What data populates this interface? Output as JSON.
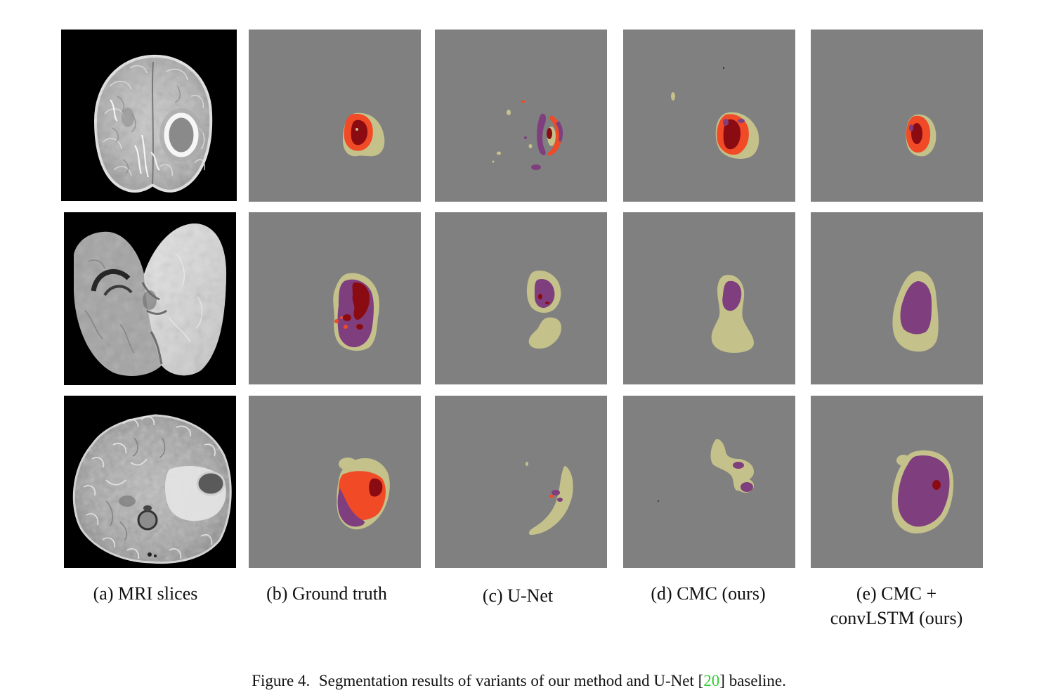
{
  "figure": {
    "columns": [
      {
        "label": "(a) MRI slices"
      },
      {
        "label": "(b) Ground truth"
      },
      {
        "label": "(c) U-Net"
      },
      {
        "label": "(d) CMC (ours)"
      },
      {
        "label_line1": "(e) CMC +",
        "label_line2": "convLSTM (ours)"
      }
    ],
    "caption": {
      "figure_number": "Figure 4.",
      "text_before_ref": "Segmentation results of variants of our method and U-Net [",
      "ref": "20",
      "text_after_ref": "] baseline."
    }
  },
  "colors": {
    "mri_background": "#000000",
    "segmentation_background": "#808080",
    "segment_khaki": "#c4c18b",
    "segment_orange": "#f04a26",
    "segment_dark_red": "#8b0b12",
    "segment_purple": "#7f3f7e",
    "reference_link": "#33cc33",
    "text": "#111111"
  }
}
